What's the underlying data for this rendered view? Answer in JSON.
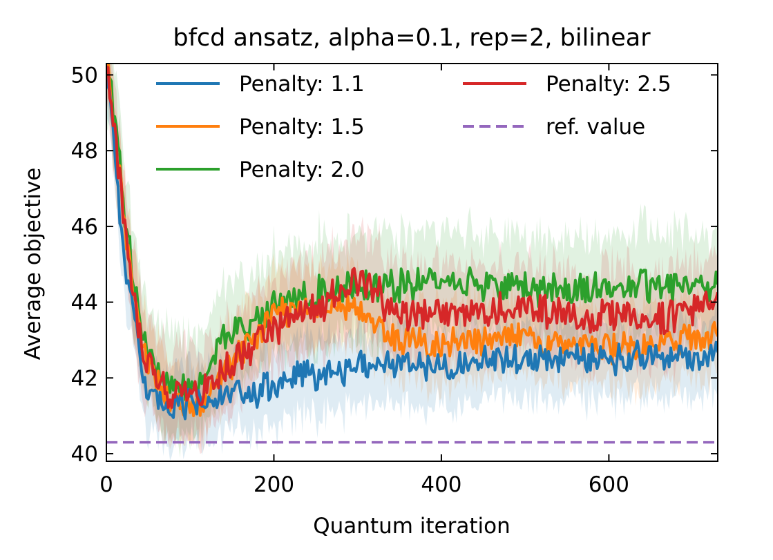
{
  "chart_data": {
    "type": "line",
    "title": "bfcd ansatz, alpha=0.1, rep=2, bilinear",
    "xlabel": "Quantum iteration",
    "ylabel": "Average objective",
    "xlim": [
      0,
      730
    ],
    "ylim": [
      39.8,
      50.3
    ],
    "xticks": [
      0,
      200,
      400,
      600
    ],
    "yticks": [
      40,
      42,
      44,
      46,
      48,
      50
    ],
    "grid": false,
    "legend_position": "top",
    "legend_columns": 2,
    "series": [
      {
        "name": "Penalty: 1.1",
        "color": "#1f77b4",
        "x": [
          0,
          10,
          20,
          30,
          40,
          50,
          60,
          70,
          80,
          100,
          120,
          150,
          180,
          200,
          250,
          300,
          350,
          400,
          450,
          500,
          550,
          600,
          650,
          700,
          730
        ],
        "values": [
          50.3,
          48.0,
          45.5,
          43.8,
          42.6,
          41.6,
          41.3,
          41.2,
          41.2,
          41.3,
          41.4,
          41.5,
          41.6,
          41.8,
          42.1,
          42.3,
          42.4,
          42.3,
          42.5,
          42.5,
          42.5,
          42.5,
          42.6,
          42.5,
          42.7
        ]
      },
      {
        "name": "Penalty: 1.5",
        "color": "#ff7f0e",
        "x": [
          0,
          10,
          20,
          30,
          40,
          50,
          60,
          70,
          80,
          100,
          120,
          150,
          180,
          200,
          250,
          300,
          350,
          400,
          450,
          500,
          550,
          600,
          650,
          700,
          730
        ],
        "values": [
          50.3,
          48.6,
          46.3,
          44.6,
          43.3,
          42.4,
          41.9,
          41.5,
          41.4,
          41.3,
          41.5,
          42.4,
          43.2,
          43.7,
          43.9,
          43.8,
          43.0,
          42.8,
          43.0,
          43.1,
          42.9,
          42.8,
          42.9,
          43.0,
          43.1
        ]
      },
      {
        "name": "Penalty: 2.0",
        "color": "#2ca02c",
        "x": [
          0,
          10,
          20,
          30,
          40,
          50,
          60,
          70,
          80,
          100,
          120,
          150,
          180,
          200,
          250,
          300,
          350,
          400,
          450,
          500,
          550,
          600,
          650,
          700,
          730
        ],
        "values": [
          50.3,
          48.9,
          46.6,
          45.0,
          43.7,
          42.8,
          42.2,
          41.9,
          41.8,
          41.8,
          42.4,
          43.2,
          43.6,
          43.9,
          44.2,
          44.5,
          44.4,
          44.6,
          44.5,
          44.4,
          44.3,
          44.4,
          44.4,
          44.5,
          44.5
        ]
      },
      {
        "name": "Penalty: 2.5",
        "color": "#d62728",
        "x": [
          0,
          10,
          20,
          30,
          40,
          50,
          60,
          70,
          80,
          100,
          120,
          150,
          180,
          200,
          250,
          300,
          350,
          400,
          450,
          500,
          550,
          600,
          650,
          700,
          730
        ],
        "values": [
          50.3,
          48.5,
          46.2,
          44.5,
          43.2,
          42.4,
          41.9,
          41.6,
          41.5,
          41.5,
          41.8,
          42.4,
          43.0,
          43.3,
          43.8,
          44.7,
          43.6,
          43.7,
          43.7,
          43.9,
          43.6,
          43.6,
          43.6,
          43.8,
          44.0
        ]
      },
      {
        "name": "ref. value",
        "color": "#9467bd",
        "style": "dashed",
        "x": [
          0,
          730
        ],
        "values": [
          40.3,
          40.3
        ]
      }
    ]
  }
}
